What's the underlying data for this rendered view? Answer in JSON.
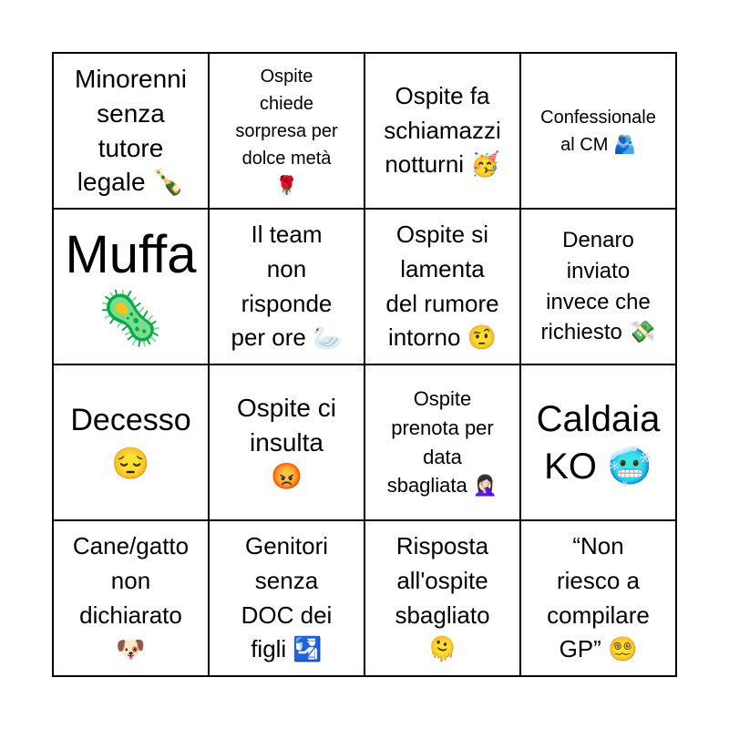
{
  "cells": [
    {
      "text": "Minorenni\nsenza\ntutore\nlegale 🍾",
      "icon": "champagne-bottle-icon"
    },
    {
      "text": "Ospite\nchiede\nsorpresa per\ndolce metà\n🌹",
      "icon": "rose-icon"
    },
    {
      "text": "Ospite fa\nschiamazzi\nnotturni 🥳",
      "icon": "party-face-icon"
    },
    {
      "text": "Confessionale\nal CM 🫂",
      "icon": "people-hugging-icon"
    },
    {
      "text": "Muffa\n🦠",
      "icon": "microbe-icon"
    },
    {
      "text": "Il team\nnon\nrisponde\nper ore 🦢",
      "icon": "swan-icon"
    },
    {
      "text": "Ospite si\nlamenta\ndel rumore\nintorno 🤨",
      "icon": "raised-eyebrow-face-icon"
    },
    {
      "text": "Denaro\ninviato\ninvece che\nrichiesto 💸",
      "icon": "money-with-wings-icon"
    },
    {
      "text": "Decesso\n😔",
      "icon": "pensive-face-icon"
    },
    {
      "text": "Ospite ci\ninsulta\n😡",
      "icon": "angry-face-icon"
    },
    {
      "text": "Ospite\nprenota per\ndata\nsbagliata 🤦🏻‍♀️",
      "icon": "facepalm-icon"
    },
    {
      "text": "Caldaia\nKO 🥶",
      "icon": "cold-face-icon"
    },
    {
      "text": "Cane/gatto\nnon\ndichiarato\n🐶",
      "icon": "dog-face-icon"
    },
    {
      "text": "Genitori\nsenza\nDOC dei\nfigli 🛂",
      "icon": "passport-control-icon"
    },
    {
      "text": "Risposta\nall'ospite\nsbagliato\n🫠",
      "icon": "melting-face-icon"
    },
    {
      "text": "“Non\nriesco a\ncompilare\nGP” 😵‍💫",
      "icon": "dizzy-face-icon"
    }
  ]
}
